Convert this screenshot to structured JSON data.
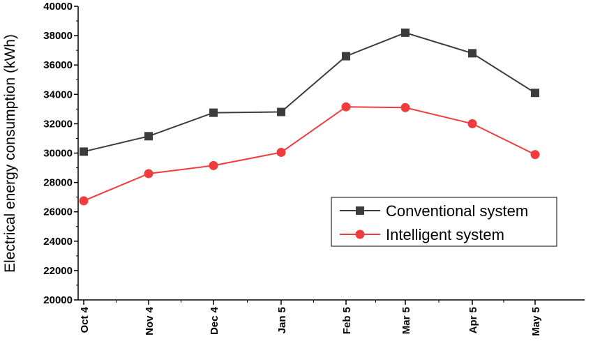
{
  "chart_data": {
    "type": "line",
    "title": "",
    "xlabel": "",
    "ylabel": "Electrical energy consumption (kWh)",
    "categories": [
      "Oct 4",
      "Nov 4",
      "Dec 4",
      "Jan 5",
      "Feb 5",
      "Mar 5",
      "Apr 5",
      "May 5"
    ],
    "ylim": [
      20000,
      40000
    ],
    "yticks": [
      "20000",
      "22000",
      "24000",
      "26000",
      "28000",
      "30000",
      "32000",
      "34000",
      "36000",
      "38000",
      "40000"
    ],
    "grid": false,
    "legend_position": "lower-right",
    "series": [
      {
        "name": "Conventional system",
        "color": "#3c3c3c",
        "marker": "square",
        "values": [
          30100,
          31150,
          32750,
          32800,
          36600,
          38200,
          36800,
          34100
        ]
      },
      {
        "name": "Intelligent system",
        "color": "#f03c3c",
        "marker": "circle",
        "values": [
          26750,
          28600,
          29150,
          30050,
          33150,
          33100,
          32000,
          29900
        ]
      }
    ]
  }
}
